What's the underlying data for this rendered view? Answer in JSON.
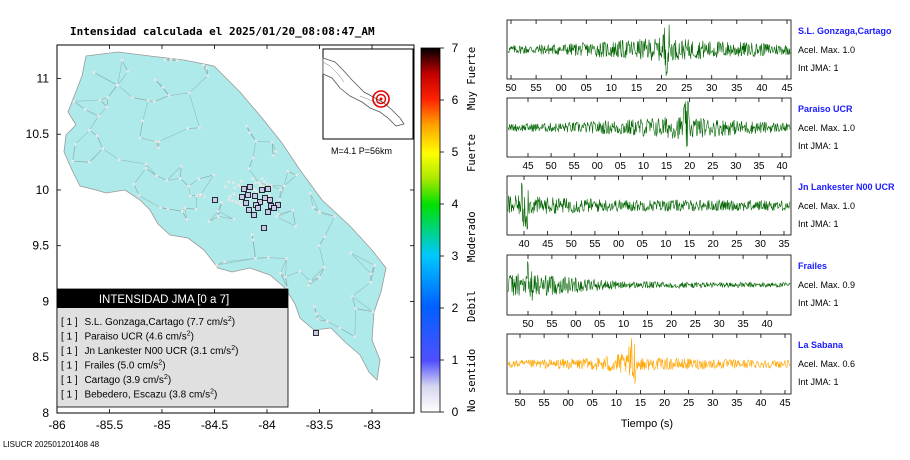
{
  "header": {
    "title": "Intensidad calculada el 2025/01/20_08:08:47_AM"
  },
  "footer": {
    "id": "LISUCR 202501201408 48"
  },
  "map": {
    "x_ticks": [
      "-86",
      "-85.5",
      "-85",
      "-84.5",
      "-84",
      "-83.5",
      "-83"
    ],
    "y_ticks": [
      "11",
      "10.5",
      "10",
      "9.5",
      "9",
      "8.5",
      "8"
    ],
    "inset_label": "M=4.1 P=56km",
    "colors": {
      "land": "#aeeaea",
      "road": "#8aa8a8",
      "town": "#e8e8e8"
    }
  },
  "scale": {
    "ticks": [
      "0",
      "1",
      "2",
      "3",
      "4",
      "5",
      "6",
      "7"
    ],
    "labels": [
      "No sentido",
      "Debil",
      "Moderado",
      "Fuerte",
      "Muy Fuerte"
    ]
  },
  "legend": {
    "title": "INTENSIDAD JMA [0 a 7]",
    "stations": [
      {
        "bracket": "[ 1 ]",
        "name": "S.L. Gonzaga,Cartago",
        "value": "(7.7 cm/s",
        "sup": "2",
        "close": ")"
      },
      {
        "bracket": "[ 1 ]",
        "name": "Paraiso UCR",
        "value": "(4.6 cm/s",
        "sup": "2",
        "close": ")"
      },
      {
        "bracket": "[ 1 ]",
        "name": "Jn Lankester N00 UCR",
        "value": "(3.1 cm/s",
        "sup": "2",
        "close": ")"
      },
      {
        "bracket": "[ 1 ]",
        "name": "Frailes",
        "value": "(5.0 cm/s",
        "sup": "2",
        "close": ")"
      },
      {
        "bracket": "[ 1 ]",
        "name": "Cartago",
        "value": "(3.9 cm/s",
        "sup": "2",
        "close": ")"
      },
      {
        "bracket": "[ 1 ]",
        "name": "Bebedero, Escazu",
        "value": "(3.8 cm/s",
        "sup": "2",
        "close": ")"
      }
    ]
  },
  "chart_data": [
    {
      "type": "heatmap",
      "xlabel": "",
      "ylabel": "",
      "xlim": [
        -86,
        -82.6
      ],
      "ylim": [
        8,
        11.3
      ],
      "x_ticks": [
        -86,
        -85.5,
        -85,
        -84.5,
        -84,
        -83.5,
        -83
      ],
      "y_ticks": [
        8,
        8.5,
        9,
        9.5,
        10,
        10.5,
        11
      ],
      "stations": [
        {
          "name": "S.L. Gonzaga,Cartago",
          "intensity": 1
        },
        {
          "name": "Paraiso UCR",
          "intensity": 1
        },
        {
          "name": "Jn Lankester N00 UCR",
          "intensity": 1
        },
        {
          "name": "Frailes",
          "intensity": 1
        },
        {
          "name": "Cartago",
          "intensity": 1
        },
        {
          "name": "Bebedero, Escazu",
          "intensity": 1
        }
      ],
      "colorbar": {
        "min": 0,
        "max": 7
      }
    },
    {
      "type": "line",
      "xlabel": "Tiempo (s)",
      "traces": [
        {
          "name": "S.L. Gonzaga,Cartago",
          "acel_label": "Acel. Max. 1.0",
          "int_label": "Int JMA: 1",
          "color": "#006400",
          "ticks": [
            "50",
            "55",
            "00",
            "05",
            "10",
            "15",
            "20",
            "25",
            "30",
            "35",
            "40",
            "45"
          ]
        },
        {
          "name": "Paraiso UCR",
          "acel_label": "Acel. Max. 1.0",
          "int_label": "Int JMA: 1",
          "color": "#006400",
          "ticks": [
            "45",
            "50",
            "55",
            "00",
            "05",
            "10",
            "15",
            "20",
            "25",
            "30",
            "35",
            "40"
          ]
        },
        {
          "name": "Jn Lankester N00 UCR",
          "acel_label": "Acel. Max. 1.0",
          "int_label": "Int JMA: 1",
          "color": "#006400",
          "ticks": [
            "40",
            "45",
            "50",
            "55",
            "00",
            "05",
            "10",
            "15",
            "20",
            "25",
            "30",
            "35"
          ]
        },
        {
          "name": "Frailes",
          "acel_label": "Acel. Max. 0.9",
          "int_label": "Int JMA: 1",
          "color": "#006400",
          "ticks": [
            "50",
            "55",
            "00",
            "05",
            "10",
            "15",
            "20",
            "25",
            "30",
            "35",
            "40"
          ]
        },
        {
          "name": "La Sabana",
          "acel_label": "Acel. Max. 0.6",
          "int_label": "Int JMA: 1",
          "color": "#ffa500",
          "ticks": [
            "50",
            "55",
            "00",
            "05",
            "10",
            "15",
            "20",
            "25",
            "30",
            "35",
            "40",
            "45"
          ]
        }
      ]
    }
  ]
}
